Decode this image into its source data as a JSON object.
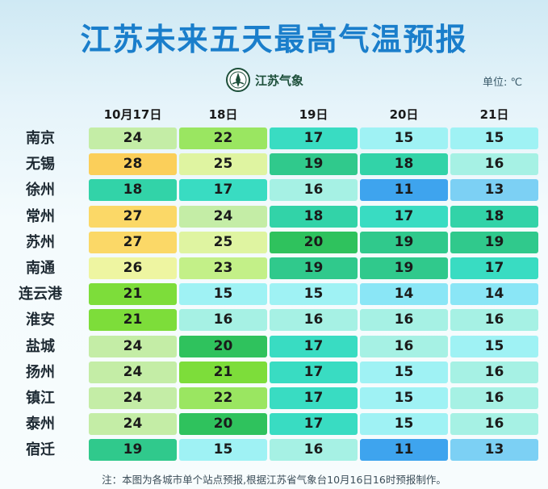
{
  "title": "江苏未来五天最高气温预报",
  "logo_text": "江苏气象",
  "logo_icon": "meteorological-bureau-emblem-icon",
  "unit_label": "单位: ℃",
  "dates": [
    "10月17日",
    "18日",
    "19日",
    "20日",
    "21日"
  ],
  "rows": [
    {
      "city": "南京",
      "temps": [
        "24",
        "22",
        "17",
        "15",
        "15"
      ]
    },
    {
      "city": "无锡",
      "temps": [
        "28",
        "25",
        "19",
        "18",
        "16"
      ]
    },
    {
      "city": "徐州",
      "temps": [
        "18",
        "17",
        "16",
        "11",
        "13"
      ]
    },
    {
      "city": "常州",
      "temps": [
        "27",
        "24",
        "18",
        "17",
        "18"
      ]
    },
    {
      "city": "苏州",
      "temps": [
        "27",
        "25",
        "20",
        "19",
        "19"
      ]
    },
    {
      "city": "南通",
      "temps": [
        "26",
        "23",
        "19",
        "19",
        "17"
      ]
    },
    {
      "city": "连云港",
      "temps": [
        "21",
        "15",
        "15",
        "14",
        "14"
      ]
    },
    {
      "city": "淮安",
      "temps": [
        "21",
        "16",
        "16",
        "16",
        "16"
      ]
    },
    {
      "city": "盐城",
      "temps": [
        "24",
        "20",
        "17",
        "16",
        "15"
      ]
    },
    {
      "city": "扬州",
      "temps": [
        "24",
        "21",
        "17",
        "15",
        "16"
      ]
    },
    {
      "city": "镇江",
      "temps": [
        "24",
        "22",
        "17",
        "15",
        "16"
      ]
    },
    {
      "city": "泰州",
      "temps": [
        "24",
        "20",
        "17",
        "15",
        "16"
      ]
    },
    {
      "city": "宿迁",
      "temps": [
        "19",
        "15",
        "16",
        "11",
        "13"
      ]
    }
  ],
  "color_scale": {
    "11": "#3ea4ee",
    "13": "#7cd0f4",
    "14": "#8ae6f6",
    "15": "#9ff2f4",
    "16": "#a6f1e4",
    "17": "#39dcc2",
    "18": "#32d3a8",
    "19": "#30c98c",
    "20": "#2fc25d",
    "21": "#7ddd3a",
    "22": "#9ae661",
    "23": "#c3f088",
    "24": "#c4eda6",
    "25": "#dff4a1",
    "26": "#eef5a1",
    "27": "#fbd867",
    "28": "#fbcf5a"
  },
  "footnote": "注：本图为各城市单个站点预报,根据江苏省气象台10月16日16时预报制作。"
}
